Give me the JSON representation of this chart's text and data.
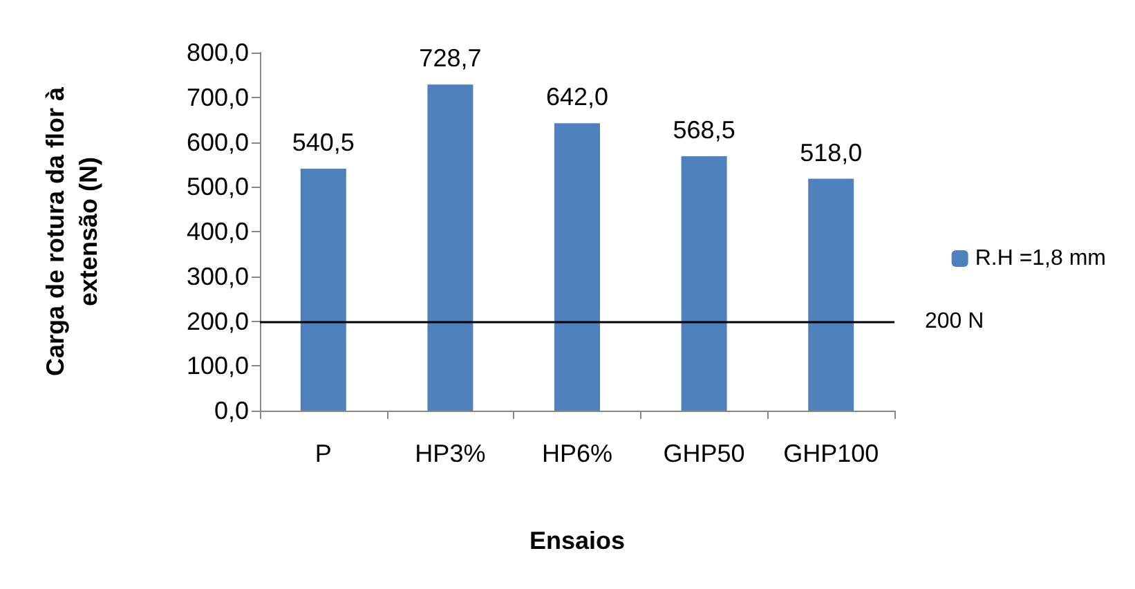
{
  "chart_data": {
    "type": "bar",
    "xlabel": "Ensaios",
    "ylabel": "Carga de rotura da flor à\nextensão (N)",
    "categories": [
      "P",
      "HP3%",
      "HP6%",
      "GHP50",
      "GHP100"
    ],
    "series": [
      {
        "name": "R.H =1,8 mm",
        "color": "#4f81bd",
        "values": [
          540.5,
          728.7,
          642.0,
          568.5,
          518.0
        ],
        "value_labels": [
          "540,5",
          "728,7",
          "642,0",
          "568,5",
          "518,0"
        ]
      }
    ],
    "ylim": [
      0,
      800
    ],
    "yticks": [
      {
        "value": 0,
        "label": "0,0"
      },
      {
        "value": 100,
        "label": "100,0"
      },
      {
        "value": 200,
        "label": "200,0"
      },
      {
        "value": 300,
        "label": "300,0"
      },
      {
        "value": 400,
        "label": "400,0"
      },
      {
        "value": 500,
        "label": "500,0"
      },
      {
        "value": 600,
        "label": "600,0"
      },
      {
        "value": 700,
        "label": "700,0"
      },
      {
        "value": 800,
        "label": "800,0"
      }
    ],
    "ref_lines": [
      {
        "axis": "y",
        "value": 200,
        "label": "200 N",
        "color": "#000000"
      }
    ],
    "legend": "right",
    "grid": false
  }
}
